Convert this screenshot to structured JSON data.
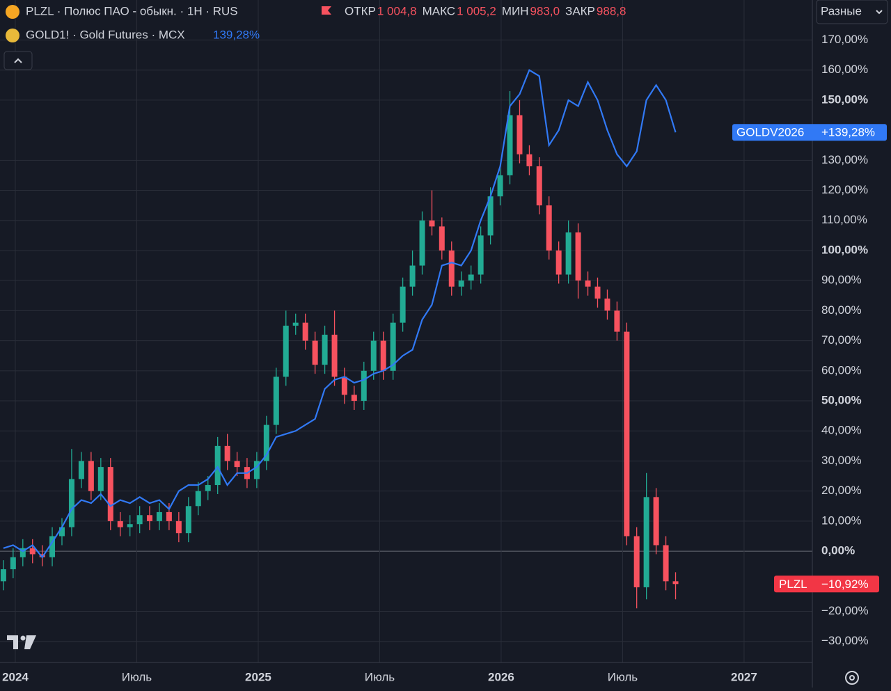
{
  "chart_data": {
    "type": "candlestick",
    "legend_main": "PLZL · Полюс ПАО - обыкн. · 1H · RUS",
    "ohlc": [
      {
        "label": "ОТКР",
        "value": "1 004,8"
      },
      {
        "label": "МАКС",
        "value": "1 005,2"
      },
      {
        "label": "МИН",
        "value": "983,0"
      },
      {
        "label": "ЗАКР",
        "value": "988,8"
      }
    ],
    "legend_compare": "GOLD1! · Gold Futures · MCX",
    "legend_compare_value": "139,28%",
    "scale_mode": "Разные",
    "xlim": [
      2023.937,
      2027.281
    ],
    "ylim": [
      -37,
      183.3
    ],
    "grid": true,
    "zero_line": true,
    "xticks": [
      {
        "value": 2024,
        "label": "2024",
        "bold": true
      },
      {
        "value": 2024.5,
        "label": "Июль"
      },
      {
        "value": 2025,
        "label": "2025",
        "bold": true
      },
      {
        "value": 2025.5,
        "label": "Июль"
      },
      {
        "value": 2026,
        "label": "2026",
        "bold": true
      },
      {
        "value": 2026.5,
        "label": "Июль"
      },
      {
        "value": 2027,
        "label": "2027",
        "bold": true
      }
    ],
    "yticks": [
      {
        "value": -30,
        "label": "−30,00%"
      },
      {
        "value": -20,
        "label": "−20,00%"
      },
      {
        "value": 0,
        "label": "0,00%",
        "bold": true
      },
      {
        "value": 10,
        "label": "10,00%"
      },
      {
        "value": 20,
        "label": "20,00%"
      },
      {
        "value": 30,
        "label": "30,00%"
      },
      {
        "value": 40,
        "label": "40,00%"
      },
      {
        "value": 50,
        "label": "50,00%",
        "bold": true
      },
      {
        "value": 60,
        "label": "60,00%"
      },
      {
        "value": 70,
        "label": "70,00%"
      },
      {
        "value": 80,
        "label": "80,00%"
      },
      {
        "value": 90,
        "label": "90,00%"
      },
      {
        "value": 100,
        "label": "100,00%",
        "bold": true
      },
      {
        "value": 110,
        "label": "110,00%"
      },
      {
        "value": 120,
        "label": "120,00%"
      },
      {
        "value": 130,
        "label": "130,00%"
      },
      {
        "value": 150,
        "label": "150,00%",
        "bold": true
      },
      {
        "value": 160,
        "label": "160,00%"
      },
      {
        "value": 170,
        "label": "170,00%"
      }
    ],
    "x": [
      2023.951,
      2023.991,
      2024.031,
      2024.071,
      2024.111,
      2024.152,
      2024.192,
      2024.232,
      2024.272,
      2024.312,
      2024.352,
      2024.392,
      2024.432,
      2024.472,
      2024.512,
      2024.553,
      2024.593,
      2024.633,
      2024.673,
      2024.713,
      2024.753,
      2024.793,
      2024.833,
      2024.873,
      2024.913,
      2024.954,
      2024.994,
      2025.034,
      2025.074,
      2025.114,
      2025.154,
      2025.194,
      2025.234,
      2025.274,
      2025.314,
      2025.355,
      2025.395,
      2025.435,
      2025.475,
      2025.515,
      2025.555,
      2025.595,
      2025.635,
      2025.675,
      2025.715,
      2025.756,
      2025.796,
      2025.836,
      2025.876,
      2025.916,
      2025.956,
      2025.996,
      2026.036,
      2026.076,
      2026.116,
      2026.157,
      2026.197,
      2026.237,
      2026.277,
      2026.317,
      2026.357,
      2026.397,
      2026.437,
      2026.477,
      2026.517,
      2026.558,
      2026.598,
      2026.638,
      2026.678,
      2026.718
    ],
    "series": [
      {
        "name": "PLZL",
        "up_color": "#22ab94",
        "down_color": "#f7525f",
        "last_value_label": "−10,92%",
        "open": [
          -10,
          -6,
          -2,
          1,
          -1,
          -2,
          5,
          8,
          24,
          30,
          20,
          28,
          10,
          8,
          9,
          12,
          10,
          13,
          10,
          6,
          15,
          20,
          22,
          35,
          30,
          28,
          24,
          30,
          42,
          58,
          75,
          76,
          70,
          62,
          72,
          58,
          52,
          50,
          60,
          70,
          60,
          76,
          88,
          95,
          110,
          108,
          100,
          88,
          90,
          92,
          105,
          118,
          125,
          145,
          132,
          128,
          115,
          100,
          92,
          106,
          90,
          88,
          84,
          80,
          73,
          5,
          -12,
          18,
          2,
          -10
        ],
        "high": [
          -3,
          1,
          4,
          4,
          2,
          8,
          11,
          34,
          33,
          33,
          31,
          31,
          13,
          12,
          15,
          15,
          16,
          16,
          13,
          18,
          23,
          25,
          38,
          39,
          33,
          31,
          33,
          45,
          61,
          80,
          79,
          79,
          73,
          75,
          80,
          61,
          55,
          63,
          73,
          73,
          79,
          91,
          100,
          113,
          120,
          111,
          103,
          93,
          95,
          108,
          121,
          128,
          153,
          150,
          135,
          131,
          118,
          103,
          110,
          109,
          93,
          91,
          87,
          83,
          76,
          8,
          26,
          21,
          5,
          -7
        ],
        "low": [
          -13,
          -9,
          -5,
          -4,
          -5,
          -5,
          2,
          5,
          21,
          17,
          17,
          7,
          5,
          5,
          6,
          7,
          7,
          7,
          3,
          3,
          12,
          17,
          19,
          27,
          25,
          21,
          21,
          27,
          39,
          55,
          72,
          67,
          59,
          59,
          55,
          49,
          47,
          47,
          57,
          57,
          57,
          73,
          85,
          92,
          105,
          97,
          85,
          85,
          87,
          89,
          102,
          115,
          122,
          129,
          125,
          112,
          97,
          89,
          89,
          84,
          85,
          81,
          77,
          70,
          2,
          -19,
          -16,
          -1,
          -13,
          -16
        ],
        "close": [
          -6,
          -2,
          1,
          -1,
          -2,
          5,
          8,
          24,
          30,
          20,
          28,
          10,
          8,
          9,
          12,
          10,
          13,
          10,
          6,
          15,
          20,
          22,
          35,
          30,
          28,
          24,
          30,
          42,
          58,
          75,
          76,
          70,
          62,
          72,
          58,
          52,
          50,
          60,
          70,
          60,
          76,
          88,
          95,
          110,
          108,
          100,
          88,
          90,
          92,
          105,
          118,
          125,
          145,
          132,
          128,
          115,
          100,
          92,
          106,
          90,
          88,
          84,
          80,
          73,
          5,
          -12,
          18,
          2,
          -10,
          -10.92
        ]
      },
      {
        "name": "GOLDV2026",
        "color": "#3179f5",
        "last_value_label": "+139,28%",
        "values": [
          1,
          2,
          0,
          2,
          -2,
          3,
          8,
          14,
          17,
          16,
          19,
          15,
          17,
          16,
          18,
          16,
          17,
          14,
          20,
          22,
          22,
          24,
          28,
          22,
          26,
          26,
          28,
          32,
          38,
          39,
          40,
          42,
          44,
          54,
          57,
          58,
          56,
          57,
          59,
          60,
          62,
          65,
          67,
          77,
          82,
          95,
          96,
          95,
          100,
          110,
          118,
          128,
          148,
          152,
          160,
          158,
          135,
          140,
          150,
          148,
          156,
          150,
          140,
          132,
          128,
          133,
          150,
          155,
          150,
          139.28
        ]
      }
    ]
  }
}
